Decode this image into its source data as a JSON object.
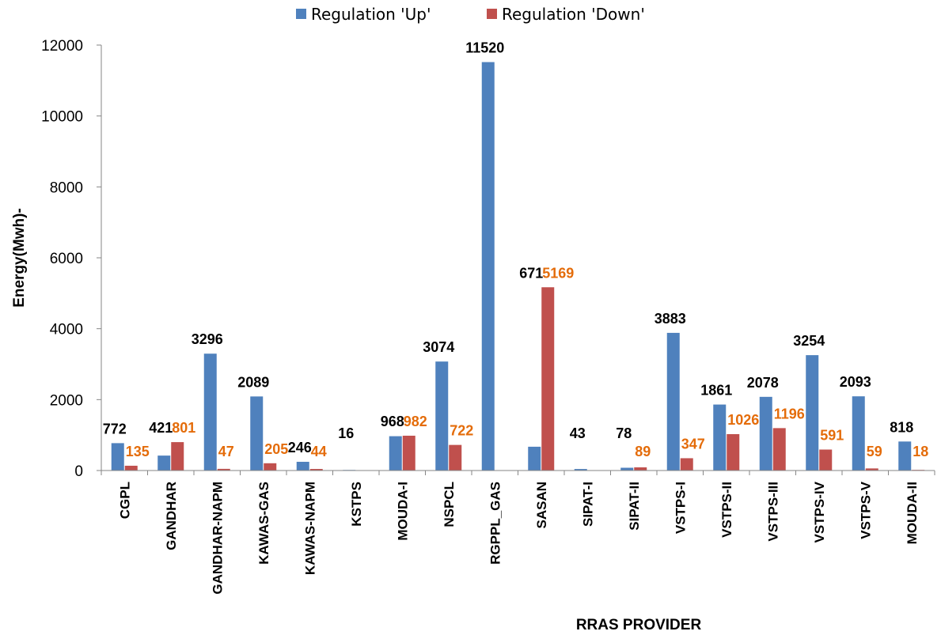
{
  "chart_data": {
    "type": "bar",
    "title": "",
    "xlabel": "RRAS PROVIDER",
    "ylabel": "Energy(Mwh)-",
    "ylim": [
      0,
      12000
    ],
    "yticks": [
      0,
      2000,
      4000,
      6000,
      8000,
      10000,
      12000
    ],
    "grid": false,
    "legend_position": "top-center",
    "categories": [
      "CGPL",
      "GANDHAR",
      "GANDHAR-NAPM",
      "KAWAS-GAS",
      "KAWAS-NAPM",
      "KSTPS",
      "MOUDA-I",
      "NSPCL",
      "RGPPL_GAS",
      "SASAN",
      "SIPAT-I",
      "SIPAT-II",
      "VSTPS-I",
      "VSTPS-II",
      "VSTPS-III",
      "VSTPS-IV",
      "VSTPS-V",
      "MOUDA-II"
    ],
    "series": [
      {
        "name": "Regulation 'Up'",
        "color": "#4F81BD",
        "label_color": "#000000",
        "values": [
          772,
          421,
          3296,
          2089,
          246,
          16,
          968,
          3074,
          11520,
          671,
          43,
          78,
          3883,
          1861,
          2078,
          3254,
          2093,
          818
        ]
      },
      {
        "name": "Regulation 'Down'",
        "color": "#C0504D",
        "label_color": "#E46C0A",
        "values": [
          135,
          801,
          47,
          205,
          44,
          0,
          982,
          722,
          0,
          5169,
          0,
          89,
          347,
          1026,
          1196,
          591,
          59,
          18
        ],
        "labels": [
          "135",
          "801",
          "47",
          "205",
          "44",
          "",
          "982",
          "722",
          "",
          "5169",
          "",
          "89",
          "347",
          "1026",
          "1196",
          "591",
          "59",
          "18"
        ]
      }
    ]
  }
}
